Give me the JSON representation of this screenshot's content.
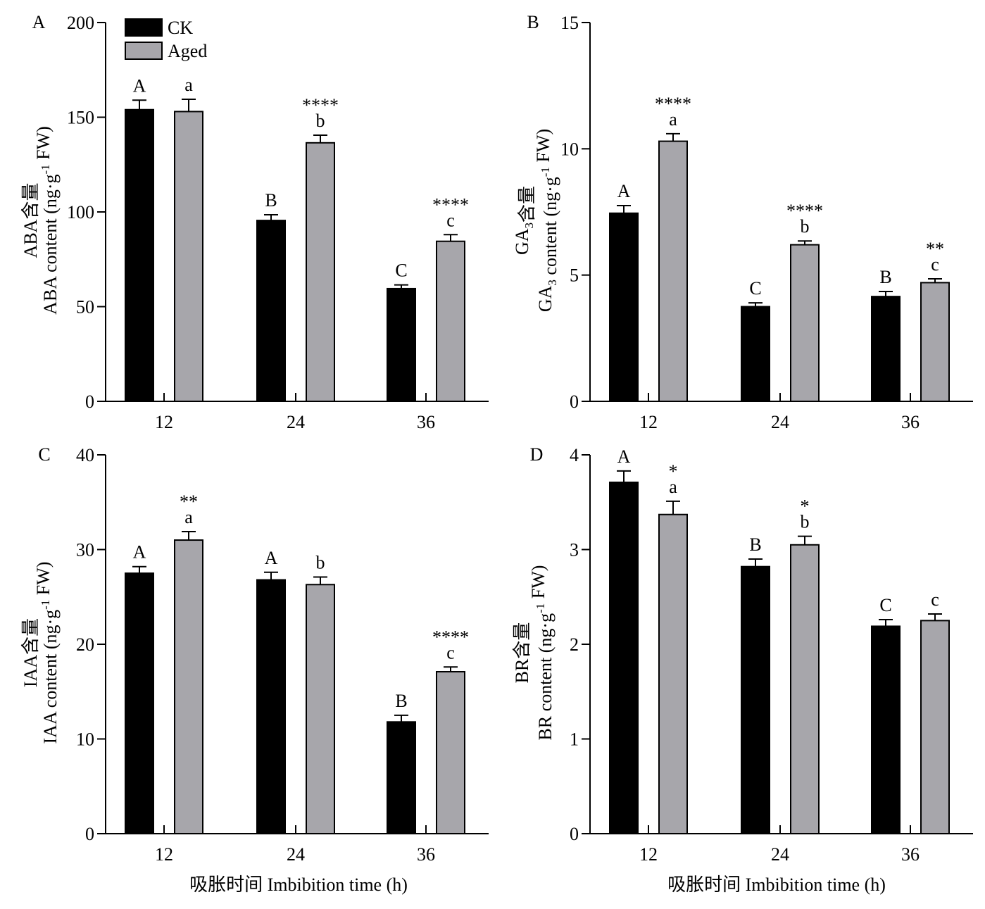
{
  "figure": {
    "legend": [
      {
        "label": "CK",
        "color": "#000000"
      },
      {
        "label": "Aged",
        "color": "#a7a6ab"
      }
    ],
    "x_title_zh": "吸胀时间",
    "x_title_en": "Imbibition time (h)"
  },
  "chart_data": [
    {
      "panel": "A",
      "type": "bar",
      "categories": [
        "12",
        "24",
        "36"
      ],
      "ylim": [
        0,
        200
      ],
      "yticks": [
        0,
        50,
        100,
        150,
        200
      ],
      "ylabel_zh": "ABA含量",
      "ylabel_en": "ABA content (ng·g⁻¹ FW)",
      "series": [
        {
          "name": "CK",
          "color": "#000000",
          "values": [
            154,
            95.5,
            59.5
          ],
          "errors": [
            5,
            3,
            2
          ],
          "letters": [
            "A",
            "B",
            "C"
          ]
        },
        {
          "name": "Aged",
          "color": "#a7a6ab",
          "values": [
            153,
            136.5,
            84.5
          ],
          "errors": [
            6.5,
            4,
            3.5
          ],
          "letters": [
            "a",
            "b",
            "c"
          ],
          "stars": [
            "",
            "****",
            "****"
          ]
        }
      ]
    },
    {
      "panel": "B",
      "type": "bar",
      "categories": [
        "12",
        "24",
        "36"
      ],
      "ylim": [
        0,
        15
      ],
      "yticks": [
        0,
        5,
        10,
        15
      ],
      "ylabel_zh": "GA₃含量",
      "ylabel_en": "GA₃ content (ng·g⁻¹ FW)",
      "series": [
        {
          "name": "CK",
          "color": "#000000",
          "values": [
            7.45,
            3.75,
            4.15
          ],
          "errors": [
            0.3,
            0.15,
            0.2
          ],
          "letters": [
            "A",
            "C",
            "B"
          ]
        },
        {
          "name": "Aged",
          "color": "#a7a6ab",
          "values": [
            10.3,
            6.2,
            4.7
          ],
          "errors": [
            0.3,
            0.15,
            0.15
          ],
          "letters": [
            "a",
            "b",
            "c"
          ],
          "stars": [
            "****",
            "****",
            "**"
          ]
        }
      ]
    },
    {
      "panel": "C",
      "type": "bar",
      "categories": [
        "12",
        "24",
        "36"
      ],
      "ylim": [
        0,
        40
      ],
      "yticks": [
        0,
        10,
        20,
        30,
        40
      ],
      "ylabel_zh": "IAA含量",
      "ylabel_en": "IAA content (ng·g⁻¹ FW)",
      "series": [
        {
          "name": "CK",
          "color": "#000000",
          "values": [
            27.5,
            26.8,
            11.8
          ],
          "errors": [
            0.7,
            0.8,
            0.7
          ],
          "letters": [
            "A",
            "A",
            "B"
          ]
        },
        {
          "name": "Aged",
          "color": "#a7a6ab",
          "values": [
            31.0,
            26.3,
            17.1
          ],
          "errors": [
            0.9,
            0.8,
            0.5
          ],
          "letters": [
            "a",
            "b",
            "c"
          ],
          "stars": [
            "**",
            "",
            "****"
          ]
        }
      ]
    },
    {
      "panel": "D",
      "type": "bar",
      "categories": [
        "12",
        "24",
        "36"
      ],
      "ylim": [
        0,
        4
      ],
      "yticks": [
        0,
        1,
        2,
        3,
        4
      ],
      "ylabel_zh": "BR含量",
      "ylabel_en": "BR content (ng·g⁻¹ FW)",
      "series": [
        {
          "name": "CK",
          "color": "#000000",
          "values": [
            3.71,
            2.82,
            2.19
          ],
          "errors": [
            0.12,
            0.08,
            0.07
          ],
          "letters": [
            "A",
            "B",
            "C"
          ]
        },
        {
          "name": "Aged",
          "color": "#a7a6ab",
          "values": [
            3.37,
            3.05,
            2.25
          ],
          "errors": [
            0.14,
            0.09,
            0.07
          ],
          "letters": [
            "a",
            "b",
            "c"
          ],
          "stars": [
            "*",
            "*",
            ""
          ]
        }
      ]
    }
  ]
}
